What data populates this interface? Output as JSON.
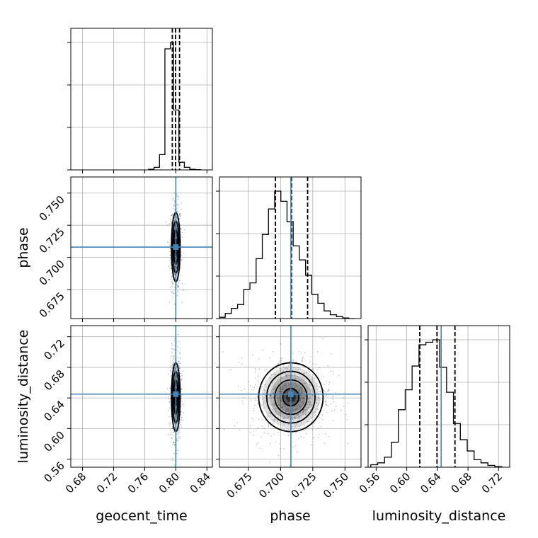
{
  "chart_data": {
    "type": "corner",
    "parameters": [
      "geocent_time",
      "phase",
      "luminosity_distance"
    ],
    "axis_labels": [
      "geocent_time",
      "phase",
      "luminosity_distance"
    ],
    "ranges": {
      "geocent_time": [
        0.665,
        0.847
      ],
      "phase": [
        0.6525,
        0.7625
      ],
      "luminosity_distance": [
        0.5495,
        0.7345
      ]
    },
    "ticks": {
      "geocent_time": [
        "0.68",
        "0.72",
        "0.76",
        "0.80",
        "0.84"
      ],
      "phase": [
        "0.675",
        "0.700",
        "0.725",
        "0.750"
      ],
      "luminosity_distance": [
        "0.56",
        "0.60",
        "0.64",
        "0.68",
        "0.72"
      ]
    },
    "truths": {
      "geocent_time": 0.8,
      "phase": 0.708,
      "luminosity_distance": 0.645
    },
    "quantiles": {
      "geocent_time": [
        0.7955,
        0.7997,
        0.8048
      ],
      "phase": [
        0.696,
        0.7085,
        0.721
      ],
      "luminosity_distance": [
        0.617,
        0.6395,
        0.663
      ]
    },
    "histograms": {
      "geocent_time": {
        "bin_edges": [
          0.765,
          0.772,
          0.779,
          0.786,
          0.793,
          0.797,
          0.804,
          0.811,
          0.818,
          0.825,
          0.832
        ],
        "counts": [
          0.005,
          0.02,
          0.12,
          0.95,
          1.0,
          0.47,
          0.06,
          0.02,
          0.005,
          0.002
        ]
      },
      "phase": {
        "bin_edges": [
          0.6525,
          0.657,
          0.6618,
          0.6666,
          0.6714,
          0.6762,
          0.681,
          0.6858,
          0.6906,
          0.6954,
          0.7002,
          0.705,
          0.7098,
          0.7146,
          0.7194,
          0.7242,
          0.729,
          0.7338,
          0.7386,
          0.7434,
          0.7482,
          0.753,
          0.7578
        ],
        "counts": [
          0.01,
          0.04,
          0.08,
          0.11,
          0.23,
          0.28,
          0.47,
          0.66,
          0.86,
          1.0,
          0.92,
          0.76,
          0.57,
          0.46,
          0.34,
          0.19,
          0.12,
          0.06,
          0.03,
          0.015,
          0.005,
          0.0
        ]
      },
      "luminosity_distance": {
        "bin_edges": [
          0.553,
          0.562,
          0.571,
          0.58,
          0.589,
          0.598,
          0.607,
          0.616,
          0.625,
          0.634,
          0.643,
          0.652,
          0.661,
          0.67,
          0.679,
          0.688,
          0.697,
          0.706,
          0.715,
          0.724
        ],
        "counts": [
          0.02,
          0.035,
          0.08,
          0.2,
          0.46,
          0.62,
          0.81,
          0.98,
          1.0,
          1.02,
          0.8,
          0.6,
          0.35,
          0.22,
          0.13,
          0.06,
          0.035,
          0.015,
          0.005
        ]
      }
    },
    "pairs": [
      {
        "x": "geocent_time",
        "y": "phase",
        "mean": [
          0.8,
          0.708
        ],
        "std": [
          0.0028,
          0.0135
        ],
        "contour_levels_sigma": [
          0.5,
          1.0,
          1.5,
          2.0
        ]
      },
      {
        "x": "geocent_time",
        "y": "luminosity_distance",
        "mean": [
          0.8,
          0.641
        ],
        "std": [
          0.0028,
          0.0225
        ],
        "contour_levels_sigma": [
          0.5,
          1.0,
          1.5,
          2.0
        ]
      },
      {
        "x": "phase",
        "y": "luminosity_distance",
        "mean": [
          0.708,
          0.641
        ],
        "std": [
          0.0125,
          0.0225
        ],
        "contour_levels_sigma": [
          0.5,
          1.0,
          1.5,
          2.0
        ]
      }
    ],
    "colors": {
      "truth": "#4682b4",
      "line": "#000000",
      "grid": "#b0b0b0",
      "points": "#000000"
    },
    "grid": true
  }
}
